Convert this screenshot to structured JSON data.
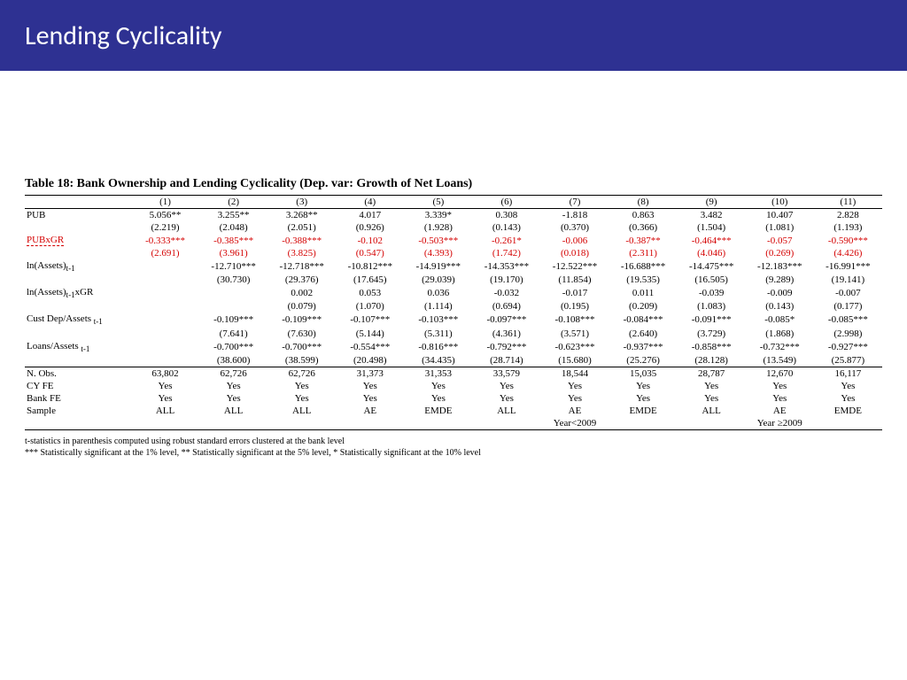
{
  "slide": {
    "title": "Lending Cyclicality"
  },
  "table": {
    "title": "Table 18: Bank Ownership and Lending Cyclicality (Dep. var: Growth of Net Loans)",
    "col_headers": [
      "(1)",
      "(2)",
      "(3)",
      "(4)",
      "(5)",
      "(6)",
      "(7)",
      "(8)",
      "(9)",
      "(10)",
      "(11)"
    ],
    "row_labels": {
      "pub": "PUB",
      "pubxgr": "PUBxGR",
      "lnassets": "ln(Assets)",
      "lnassets_suffix": "t-1",
      "lnassetsxgr": "ln(Assets)",
      "lnassetsxgr_suffix": "t-1",
      "lnassetsxgr_tail": "xGR",
      "custdep": "Cust Dep/Assets",
      "custdep_suffix": "t-1",
      "loans": "Loans/Assets",
      "loans_suffix": "t-1",
      "nobs": "N. Obs.",
      "cyfe": "CY FE",
      "bankfe": "Bank FE",
      "sample": "Sample"
    },
    "pub": [
      "5.056**",
      "3.255**",
      "3.268**",
      "4.017",
      "3.339*",
      "0.308",
      "-1.818",
      "0.863",
      "3.482",
      "10.407",
      "2.828"
    ],
    "pub_t": [
      "(2.219)",
      "(2.048)",
      "(2.051)",
      "(0.926)",
      "(1.928)",
      "(0.143)",
      "(0.370)",
      "(0.366)",
      "(1.504)",
      "(1.081)",
      "(1.193)"
    ],
    "pubxgr": [
      "-0.333***",
      "-0.385***",
      "-0.388***",
      "-0.102",
      "-0.503***",
      "-0.261*",
      "-0.006",
      "-0.387**",
      "-0.464***",
      "-0.057",
      "-0.590***"
    ],
    "pubxgr_t": [
      "(2.691)",
      "(3.961)",
      "(3.825)",
      "(0.547)",
      "(4.393)",
      "(1.742)",
      "(0.018)",
      "(2.311)",
      "(4.046)",
      "(0.269)",
      "(4.426)"
    ],
    "lnassets": [
      "",
      "-12.710***",
      "-12.718***",
      "-10.812***",
      "-14.919***",
      "-14.353***",
      "-12.522***",
      "-16.688***",
      "-14.475***",
      "-12.183***",
      "-16.991***"
    ],
    "lnassets_t": [
      "",
      "(30.730)",
      "(29.376)",
      "(17.645)",
      "(29.039)",
      "(19.170)",
      "(11.854)",
      "(19.535)",
      "(16.505)",
      "(9.289)",
      "(19.141)"
    ],
    "lnassetsxgr": [
      "",
      "",
      "0.002",
      "0.053",
      "0.036",
      "-0.032",
      "-0.017",
      "0.011",
      "-0.039",
      "-0.009",
      "-0.007"
    ],
    "lnassetsxgr_t": [
      "",
      "",
      "(0.079)",
      "(1.070)",
      "(1.114)",
      "(0.694)",
      "(0.195)",
      "(0.209)",
      "(1.083)",
      "(0.143)",
      "(0.177)"
    ],
    "custdep": [
      "",
      "-0.109***",
      "-0.109***",
      "-0.107***",
      "-0.103***",
      "-0.097***",
      "-0.108***",
      "-0.084***",
      "-0.091***",
      "-0.085*",
      "-0.085***"
    ],
    "custdep_t": [
      "",
      "(7.641)",
      "(7.630)",
      "(5.144)",
      "(5.311)",
      "(4.361)",
      "(3.571)",
      "(2.640)",
      "(3.729)",
      "(1.868)",
      "(2.998)"
    ],
    "loans": [
      "",
      "-0.700***",
      "-0.700***",
      "-0.554***",
      "-0.816***",
      "-0.792***",
      "-0.623***",
      "-0.937***",
      "-0.858***",
      "-0.732***",
      "-0.927***"
    ],
    "loans_t": [
      "",
      "(38.600)",
      "(38.599)",
      "(20.498)",
      "(34.435)",
      "(28.714)",
      "(15.680)",
      "(25.276)",
      "(28.128)",
      "(13.549)",
      "(25.877)"
    ],
    "nobs": [
      "63,802",
      "62,726",
      "62,726",
      "31,373",
      "31,353",
      "33,579",
      "18,544",
      "15,035",
      "28,787",
      "12,670",
      "16,117"
    ],
    "cyfe": [
      "Yes",
      "Yes",
      "Yes",
      "Yes",
      "Yes",
      "Yes",
      "Yes",
      "Yes",
      "Yes",
      "Yes",
      "Yes"
    ],
    "bankfe": [
      "Yes",
      "Yes",
      "Yes",
      "Yes",
      "Yes",
      "Yes",
      "Yes",
      "Yes",
      "Yes",
      "Yes",
      "Yes"
    ],
    "sample_row": [
      "ALL",
      "ALL",
      "ALL",
      "AE",
      "EMDE",
      "ALL",
      "AE",
      "EMDE",
      "ALL",
      "AE",
      "EMDE"
    ],
    "subheader_left": "Year<2009",
    "subheader_right": "Year ≥2009",
    "footnote1": "t-statistics in parenthesis computed using robust standard errors clustered at the bank level",
    "footnote2": "*** Statistically significant at the 1% level, ** Statistically significant at the 5% level, * Statistically significant at the 10% level"
  },
  "style": {
    "title_bar_bg": "#2e3192",
    "title_color": "#ffffff",
    "red": "#d40000",
    "font_body": "Times New Roman",
    "font_title": "Calibri Light"
  }
}
